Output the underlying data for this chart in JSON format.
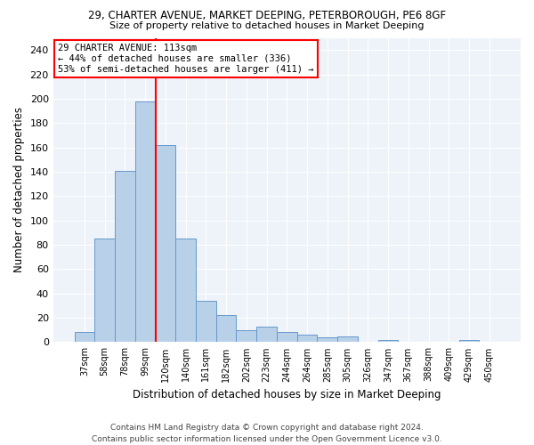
{
  "title_line1": "29, CHARTER AVENUE, MARKET DEEPING, PETERBOROUGH, PE6 8GF",
  "title_line2": "Size of property relative to detached houses in Market Deeping",
  "xlabel": "Distribution of detached houses by size in Market Deeping",
  "ylabel": "Number of detached properties",
  "categories": [
    "37sqm",
    "58sqm",
    "78sqm",
    "99sqm",
    "120sqm",
    "140sqm",
    "161sqm",
    "182sqm",
    "202sqm",
    "223sqm",
    "244sqm",
    "264sqm",
    "285sqm",
    "305sqm",
    "326sqm",
    "347sqm",
    "367sqm",
    "388sqm",
    "409sqm",
    "429sqm",
    "450sqm"
  ],
  "values": [
    8,
    85,
    141,
    198,
    162,
    85,
    34,
    22,
    10,
    13,
    8,
    6,
    4,
    5,
    0,
    2,
    0,
    0,
    0,
    2,
    0
  ],
  "bar_color": "#b8d0e8",
  "bar_edge_color": "#6699cc",
  "vline_x": 3.5,
  "vline_color": "red",
  "annotation_text": "29 CHARTER AVENUE: 113sqm\n← 44% of detached houses are smaller (336)\n53% of semi-detached houses are larger (411) →",
  "annotation_box_color": "white",
  "annotation_box_edge_color": "red",
  "ylim": [
    0,
    250
  ],
  "yticks": [
    0,
    20,
    40,
    60,
    80,
    100,
    120,
    140,
    160,
    180,
    200,
    220,
    240
  ],
  "footer_line1": "Contains HM Land Registry data © Crown copyright and database right 2024.",
  "footer_line2": "Contains public sector information licensed under the Open Government Licence v3.0.",
  "background_color": "#eef2f9"
}
